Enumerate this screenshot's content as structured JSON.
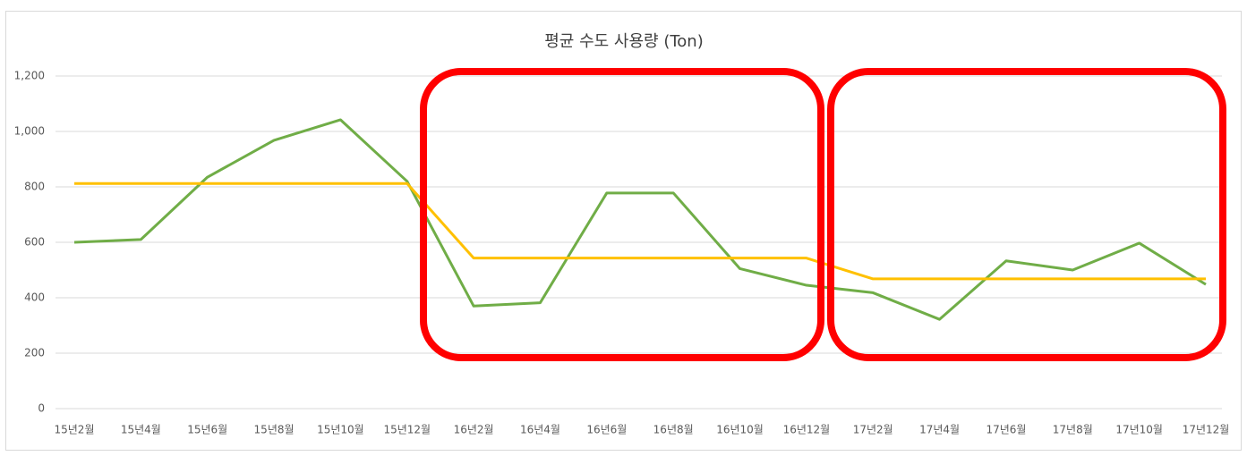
{
  "chart_data": {
    "type": "line",
    "title": "평균 수도 사용량 (Ton)",
    "categories": [
      "15년2월",
      "15년4월",
      "15년6월",
      "15년8월",
      "15년10월",
      "15년12월",
      "16년2월",
      "16년4월",
      "16년6월",
      "16년8월",
      "16년10월",
      "16년12월",
      "17년2월",
      "17년4월",
      "17년6월",
      "17년8월",
      "17년10월",
      "17년12월"
    ],
    "series": [
      {
        "color": "#70ad47",
        "values": [
          600,
          610,
          835,
          968,
          1042,
          820,
          370,
          382,
          778,
          778,
          505,
          445,
          418,
          322,
          533,
          500,
          597,
          448
        ]
      },
      {
        "color": "#ffc000",
        "values": [
          812,
          812,
          812,
          812,
          812,
          812,
          543,
          543,
          543,
          543,
          543,
          543,
          468,
          468,
          468,
          468,
          468,
          468
        ]
      }
    ],
    "ylim": [
      0,
      1200
    ],
    "yticks": [
      0,
      200,
      400,
      600,
      800,
      {
        "value": 1000,
        "label": "1,000"
      },
      {
        "value": 1200,
        "label": "1,200"
      }
    ],
    "grid": true
  }
}
